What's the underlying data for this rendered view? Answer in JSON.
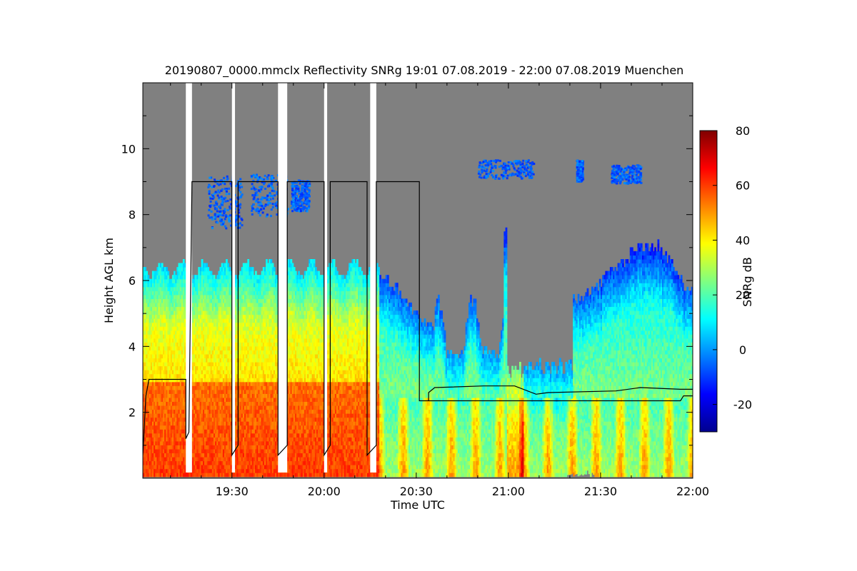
{
  "chart_data": {
    "type": "heatmap",
    "title": "20190807_0000.mmclx Reflectivity SNRg   19:01 07.08.2019 - 22:00 07.08.2019 Muenchen",
    "xlabel": "Time UTC",
    "ylabel": "Height AGL km",
    "colorbar_label": "SNRg dB",
    "xlim": [
      "19:01",
      "22:00"
    ],
    "ylim": [
      0,
      12
    ],
    "x_ticks": [
      "19:30",
      "20:00",
      "20:30",
      "21:00",
      "21:30",
      "22:00"
    ],
    "y_ticks": [
      2,
      4,
      6,
      8,
      10
    ],
    "colorbar_range": [
      -30,
      80
    ],
    "colorbar_ticks": [
      -20,
      0,
      20,
      40,
      60,
      80
    ],
    "colormap": [
      "#00008f",
      "#0000ff",
      "#0080ff",
      "#00ffff",
      "#80ff80",
      "#ffff00",
      "#ff8000",
      "#ff0000",
      "#800000"
    ],
    "background_color": "#808080",
    "data_gaps_utc": [
      [
        "19:15",
        "19:17"
      ],
      [
        "19:30",
        "19:31"
      ],
      [
        "19:45",
        "19:48"
      ],
      [
        "20:00",
        "20:01"
      ],
      [
        "20:15",
        "20:17"
      ]
    ],
    "boundary_line_km": [
      [
        "19:01",
        0.7
      ],
      [
        "19:02",
        2.5
      ],
      [
        "19:03",
        3.0
      ],
      [
        "19:15",
        3.0
      ],
      [
        "19:15",
        1.2
      ],
      [
        "19:16",
        1.4
      ],
      [
        "19:17",
        9.0
      ],
      [
        "19:30",
        9.0
      ],
      [
        "19:30",
        0.7
      ],
      [
        "19:32",
        1.0
      ],
      [
        "19:32",
        9.0
      ],
      [
        "19:45",
        9.0
      ],
      [
        "19:45",
        0.7
      ],
      [
        "19:48",
        1.0
      ],
      [
        "19:48",
        9.0
      ],
      [
        "19:60",
        9.0
      ],
      [
        "20:00",
        0.7
      ],
      [
        "20:02",
        1.0
      ],
      [
        "20:02",
        9.0
      ],
      [
        "20:14",
        9.0
      ],
      [
        "20:14",
        0.7
      ],
      [
        "20:17",
        1.0
      ],
      [
        "20:17",
        9.0
      ],
      [
        "20:31",
        9.0
      ],
      [
        "20:31",
        2.35
      ],
      [
        "20:34",
        2.35
      ],
      [
        "20:34",
        2.6
      ],
      [
        "20:36",
        2.75
      ],
      [
        "20:52",
        2.8
      ],
      [
        "21:02",
        2.8
      ],
      [
        "21:09",
        2.55
      ],
      [
        "21:13",
        2.6
      ],
      [
        "21:35",
        2.65
      ],
      [
        "21:43",
        2.75
      ],
      [
        "21:56",
        2.7
      ],
      [
        "22:00",
        2.7
      ]
    ],
    "lower_line_km": [
      [
        "20:34",
        2.35
      ],
      [
        "21:56",
        2.35
      ],
      [
        "21:57",
        2.5
      ],
      [
        "22:00",
        2.5
      ]
    ]
  }
}
